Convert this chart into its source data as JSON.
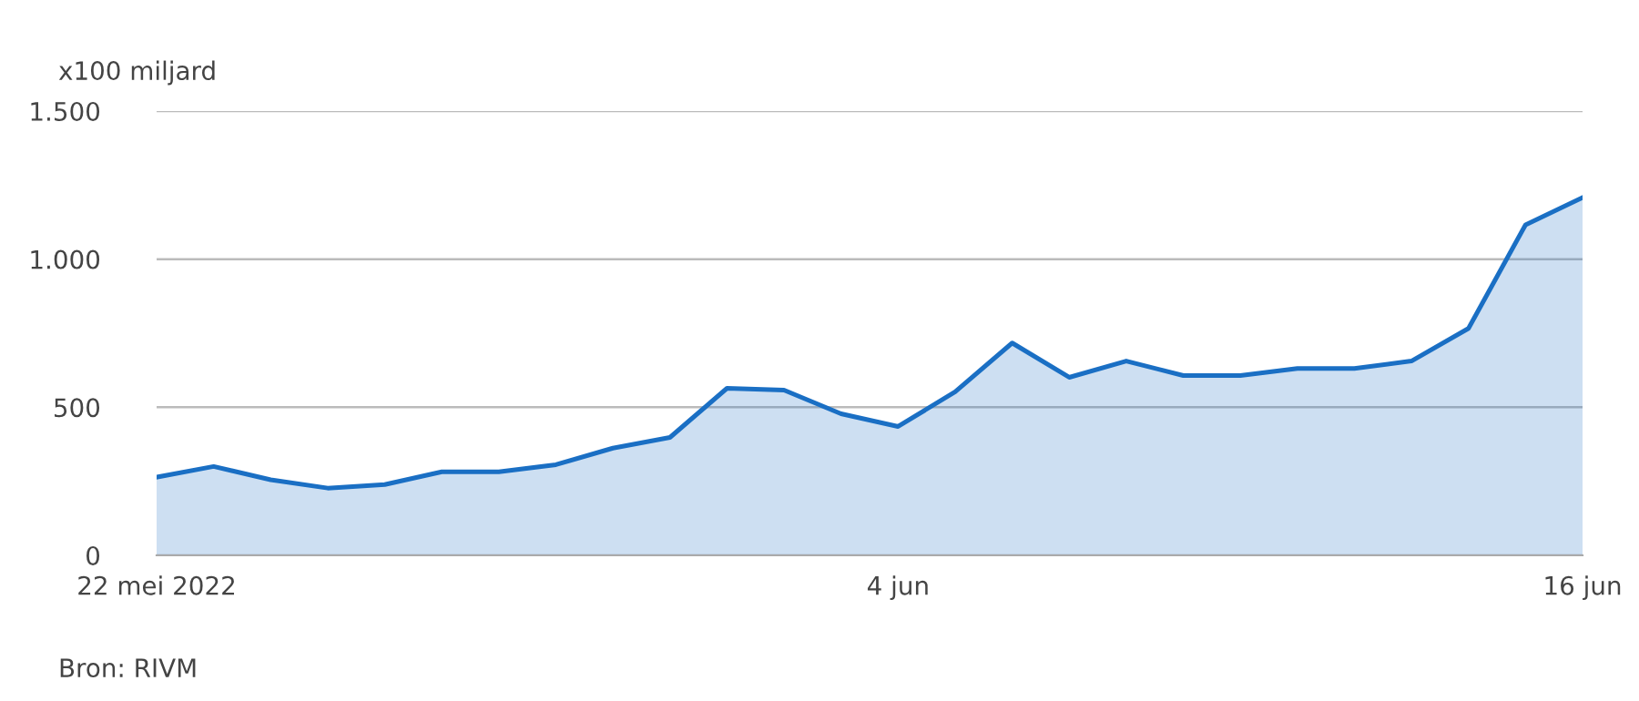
{
  "chart_data": {
    "type": "area",
    "ylabel": "x100 miljard",
    "x": [
      "2022-05-22",
      "2022-05-23",
      "2022-05-24",
      "2022-05-25",
      "2022-05-26",
      "2022-05-27",
      "2022-05-28",
      "2022-05-29",
      "2022-05-30",
      "2022-05-31",
      "2022-06-01",
      "2022-06-02",
      "2022-06-03",
      "2022-06-04",
      "2022-06-05",
      "2022-06-06",
      "2022-06-07",
      "2022-06-08",
      "2022-06-09",
      "2022-06-10",
      "2022-06-11",
      "2022-06-12",
      "2022-06-13",
      "2022-06-14",
      "2022-06-15",
      "2022-06-16"
    ],
    "series": [
      {
        "color": "#1a6fc4",
        "values": [
          264,
          300,
          255,
          227,
          239,
          282,
          282,
          306,
          362,
          398,
          564,
          558,
          478,
          435,
          552,
          717,
          601,
          656,
          607,
          607,
          631,
          631,
          656,
          766,
          1116,
          1208
        ]
      }
    ],
    "xlim": [
      "2022-05-22",
      "2022-06-16"
    ],
    "xticks": [
      {
        "value": "2022-05-22",
        "label": "22 mei 2022"
      },
      {
        "value": "2022-06-04",
        "label": "4 jun"
      },
      {
        "value": "2022-06-16",
        "label": "16 jun"
      }
    ],
    "ylim": [
      0,
      1500
    ],
    "yticks": [
      0,
      500,
      {
        "value": 1000,
        "label": "1.000"
      },
      {
        "value": 1500,
        "label": "1.500"
      }
    ],
    "grid": "y",
    "annotations": [
      "Bron: RIVM"
    ]
  }
}
